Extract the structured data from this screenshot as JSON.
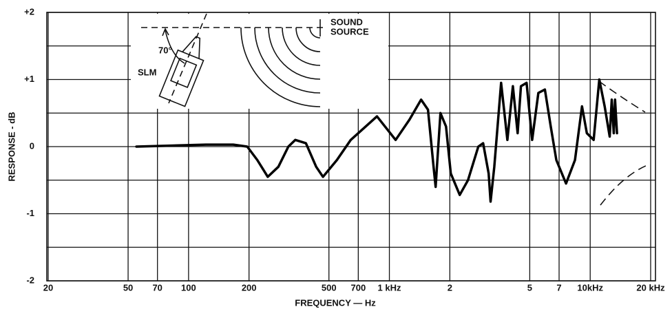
{
  "chart_data": {
    "type": "line",
    "x_label": "FREQUENCY — Hz",
    "y_label": "RESPONSE - dB",
    "log_x": true,
    "grid": true,
    "xlim": [
      20,
      20000
    ],
    "ylim": [
      -2,
      2
    ],
    "xticks": [
      20,
      50,
      70,
      100,
      200,
      500,
      700,
      {
        "value": 1000,
        "label": "1 kHz"
      },
      {
        "value": 2000,
        "label": "2"
      },
      {
        "value": 5000,
        "label": "5"
      },
      {
        "value": 7000,
        "label": "7"
      },
      {
        "value": 10000,
        "label": "10kHz"
      },
      {
        "value": 20000,
        "label": "20 kHz"
      }
    ],
    "yticks": [
      {
        "value": 2,
        "label": "+2"
      },
      {
        "value": 1,
        "label": "+1"
      },
      0,
      -1,
      -2
    ],
    "y_minor_grid": [
      1.5,
      0.5,
      -0.5,
      -1.5
    ],
    "annotations": [
      "SOUND",
      "SOURCE",
      "70°",
      "SLM"
    ],
    "series": [
      {
        "color": "#000000",
        "x": [
          55,
          92,
          122,
          167,
          196,
          220,
          248,
          280,
          314,
          340,
          384,
          432,
          467,
          548,
          642,
          867,
          1074,
          1258,
          1439,
          1557,
          1659,
          1700,
          1796,
          1914,
          2022,
          2240,
          2463,
          2773,
          2930,
          3120,
          3190,
          3330,
          3600,
          3870,
          4120,
          4350,
          4520,
          4820,
          5140,
          5520,
          5950,
          6360,
          6780,
          7580,
          8400,
          9100,
          9620,
          10400,
          11100,
          11800,
          12500,
          12800,
          13100,
          13300,
          13600
        ],
        "values": [
          0,
          0.02,
          0.03,
          0.03,
          0,
          -0.2,
          -0.45,
          -0.3,
          0,
          0.1,
          0.05,
          -0.3,
          -0.45,
          -0.2,
          0.1,
          0.45,
          0.1,
          0.4,
          0.7,
          0.55,
          -0.3,
          -0.6,
          0.5,
          0.3,
          -0.4,
          -0.72,
          -0.5,
          0,
          0.05,
          -0.4,
          -0.82,
          -0.3,
          0.95,
          0.1,
          0.9,
          0.2,
          0.9,
          0.95,
          0.1,
          0.8,
          0.85,
          0.3,
          -0.2,
          -0.55,
          -0.2,
          0.6,
          0.2,
          0.1,
          1.0,
          0.6,
          0.15,
          0.7,
          0.2,
          0.7,
          0.2
        ]
      }
    ]
  }
}
